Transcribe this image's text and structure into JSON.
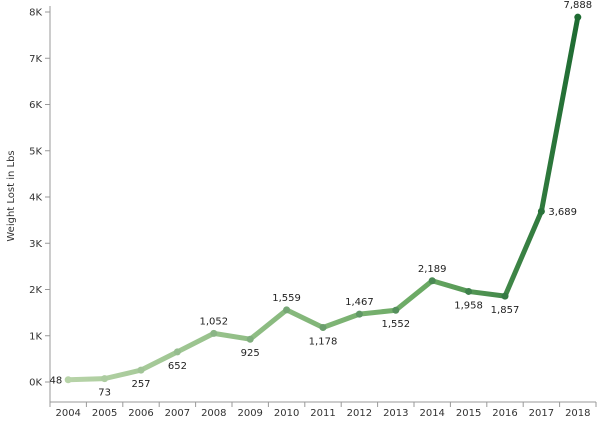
{
  "chart_data": {
    "type": "line",
    "title": "",
    "xlabel": "",
    "ylabel": "Weight Lost in Lbs",
    "x": [
      "2004",
      "2005",
      "2006",
      "2007",
      "2008",
      "2009",
      "2010",
      "2011",
      "2012",
      "2013",
      "2014",
      "2015",
      "2016",
      "2017",
      "2018"
    ],
    "series": [
      {
        "values": [
          48,
          73,
          257,
          652,
          1052,
          925,
          1559,
          1178,
          1467,
          1552,
          2189,
          1958,
          1857,
          3689,
          7888
        ],
        "labels": [
          "48",
          "73",
          "257",
          "652",
          "1,052",
          "925",
          "1,559",
          "1,178",
          "1,467",
          "1,552",
          "2,189",
          "1,958",
          "1,857",
          "3,689",
          "7,888"
        ]
      }
    ],
    "ylim": [
      0,
      8000
    ],
    "yticks": [
      0,
      1000,
      2000,
      3000,
      4000,
      5000,
      6000,
      7000,
      8000
    ],
    "ytick_labels": [
      "0K",
      "1K",
      "2K",
      "3K",
      "4K",
      "5K",
      "6K",
      "7K",
      "8K"
    ],
    "grid": false,
    "legend": "none",
    "colors": {
      "start": "#b7d3a8",
      "end": "#1e6b32",
      "axis": "#999999"
    }
  }
}
